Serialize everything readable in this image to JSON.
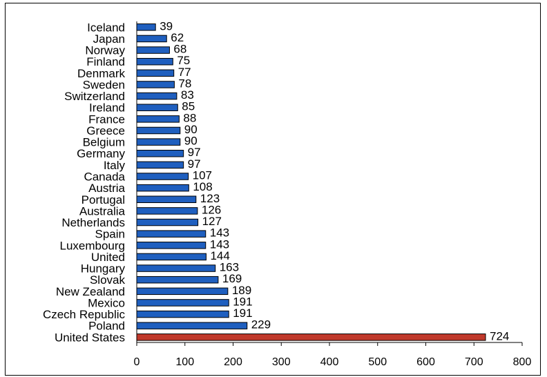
{
  "chart_data": {
    "type": "bar",
    "orientation": "horizontal",
    "title": "",
    "xlabel": "",
    "ylabel": "",
    "categories": [
      "Iceland",
      "Japan",
      "Norway",
      "Finland",
      "Denmark",
      "Sweden",
      "Switzerland",
      "Ireland",
      "France",
      "Greece",
      "Belgium",
      "Germany",
      "Italy",
      "Canada",
      "Austria",
      "Portugal",
      "Australia",
      "Netherlands",
      "Spain",
      "Luxembourg",
      "United",
      "Hungary",
      "Slovak",
      "New Zealand",
      "Mexico",
      "Czech Republic",
      "Poland",
      "United States"
    ],
    "values": [
      39,
      62,
      68,
      75,
      77,
      78,
      83,
      85,
      88,
      90,
      90,
      97,
      97,
      107,
      108,
      123,
      126,
      127,
      143,
      143,
      144,
      163,
      169,
      189,
      191,
      191,
      229,
      724
    ],
    "data_labels": [
      "39",
      "62",
      "68",
      "75",
      "77",
      "78",
      "83",
      "85",
      "88",
      "90",
      "90",
      "97",
      "97",
      "107",
      "108",
      "123",
      "126",
      "127",
      "143",
      "143",
      "144",
      "163",
      "169",
      "189",
      "191",
      "191",
      "229",
      "724"
    ],
    "xlim": [
      0,
      800
    ],
    "xticks": [
      0,
      100,
      200,
      300,
      400,
      500,
      600,
      700,
      800
    ],
    "xtick_labels": [
      "0",
      "100",
      "200",
      "300",
      "400",
      "500",
      "600",
      "700",
      "800"
    ],
    "grid": false,
    "legend": "none",
    "colors": {
      "default_bar": "#1f5fbf",
      "highlight_bar": "#c0392b",
      "bar_edge": "#000000"
    },
    "highlight_category": "United States"
  }
}
